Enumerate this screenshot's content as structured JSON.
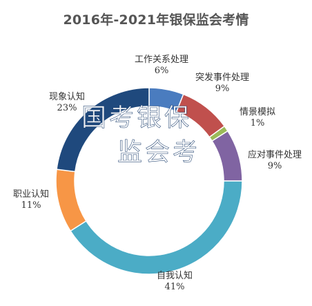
{
  "chart_data": {
    "type": "pie",
    "title": "2016年-2021年银保监会考情",
    "categories": [
      "工作关系处理",
      "突发事件处理",
      "情景模拟",
      "应对事件处理",
      "自我认知",
      "职业认知",
      "现象认知"
    ],
    "values": [
      6,
      9,
      1,
      9,
      41,
      11,
      23
    ],
    "value_labels": [
      "6%",
      "9%",
      "1%",
      "9%",
      "41%",
      "11%",
      "23%"
    ],
    "colors": [
      "#4a7cbf",
      "#c0504d",
      "#9bbb59",
      "#8064a2",
      "#4bacc6",
      "#f79646",
      "#1f497d"
    ],
    "donut": true,
    "start_angle_deg": 0,
    "direction": "clockwise",
    "legend": "none"
  },
  "watermark": {
    "text": "国考银保",
    "text2": "监会考"
  }
}
